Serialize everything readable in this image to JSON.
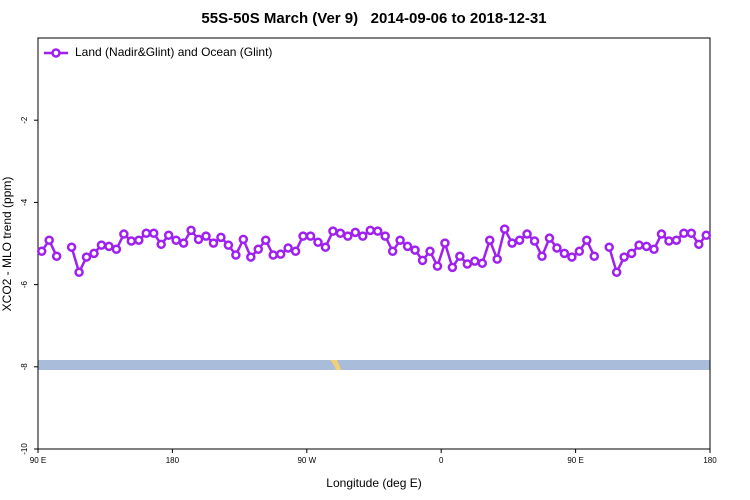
{
  "chart_data": {
    "type": "line",
    "title": "55S-50S March (Ver 9)   2014-09-06 to 2018-12-31",
    "x_label": "Longitude (deg E)",
    "y_label": "XCO2 - MLO trend (ppm)",
    "xlim": [
      90,
      540
    ],
    "ylim": [
      -10,
      0
    ],
    "xticks": [
      {
        "value": 90,
        "label": "90 E"
      },
      180,
      {
        "value": 270,
        "label": "90 W"
      },
      {
        "value": 360,
        "label": "0"
      },
      {
        "value": 450,
        "label": "90 E"
      },
      {
        "value": 540,
        "label": "180"
      }
    ],
    "yticks": [
      -10,
      -8,
      -6,
      -4,
      -2
    ],
    "legend": "top-left",
    "x": [
      92.5,
      97.5,
      102.5,
      107.5,
      112.5,
      117.5,
      122.5,
      127.5,
      132.5,
      137.5,
      142.5,
      147.5,
      152.5,
      157.5,
      162.5,
      167.5,
      172.5,
      177.5,
      182.5,
      187.5,
      192.5,
      197.5,
      202.5,
      207.5,
      212.5,
      217.5,
      222.5,
      227.5,
      232.5,
      237.5,
      242.5,
      247.5,
      252.5,
      257.5,
      262.5,
      267.5,
      272.5,
      277.5,
      282.5,
      287.5,
      292.5,
      297.5,
      302.5,
      307.5,
      312.5,
      317.5,
      322.5,
      327.5,
      332.5,
      337.5,
      342.5,
      347.5,
      352.5,
      357.5,
      362.5,
      367.5,
      372.5,
      377.5,
      382.5,
      387.5,
      392.5,
      397.5,
      402.5,
      407.5,
      412.5,
      417.5,
      422.5,
      427.5,
      432.5,
      437.5,
      442.5,
      447.5,
      452.5,
      457.5,
      462.5,
      467.5,
      472.5,
      477.5,
      482.5,
      487.5,
      492.5,
      497.5,
      502.5,
      507.5,
      512.5,
      517.5,
      522.5,
      527.5,
      532.5,
      537.5
    ],
    "series": [
      {
        "name": "Land (Nadir&Glint) and Ocean (Glint)",
        "color": "#a020f0",
        "values": [
          -5.19,
          -4.92,
          -5.31,
          null,
          -5.09,
          -5.7,
          -5.33,
          -5.24,
          -5.04,
          -5.07,
          -5.14,
          -4.77,
          -4.94,
          -4.92,
          -4.75,
          -4.75,
          -5.02,
          -4.8,
          -4.92,
          -4.99,
          -4.68,
          -4.9,
          -4.82,
          -4.99,
          -4.85,
          -5.04,
          -5.28,
          -4.9,
          -5.33,
          -5.14,
          -4.92,
          -5.28,
          -5.26,
          -5.11,
          -5.19,
          -4.82,
          -4.82,
          -4.97,
          -5.09,
          -4.7,
          -4.75,
          -4.82,
          -4.73,
          -4.82,
          -4.68,
          -4.7,
          -4.82,
          -5.19,
          -4.92,
          -5.07,
          -5.16,
          -5.41,
          -5.19,
          -5.55,
          -4.99,
          -5.58,
          -5.31,
          -5.5,
          -5.43,
          -5.48,
          -4.92,
          -5.38,
          -4.65,
          -4.99,
          -4.92,
          -4.77,
          -4.94,
          -5.31,
          -4.87,
          -5.11,
          -5.24,
          -5.33,
          -5.19,
          -4.92,
          -5.31,
          null,
          -5.09,
          -5.7,
          -5.33,
          -5.24,
          -5.04,
          -5.07,
          -5.14,
          -4.77,
          -4.94,
          -4.92,
          -4.75,
          -4.75,
          -5.02,
          -4.8
        ]
      }
    ]
  }
}
